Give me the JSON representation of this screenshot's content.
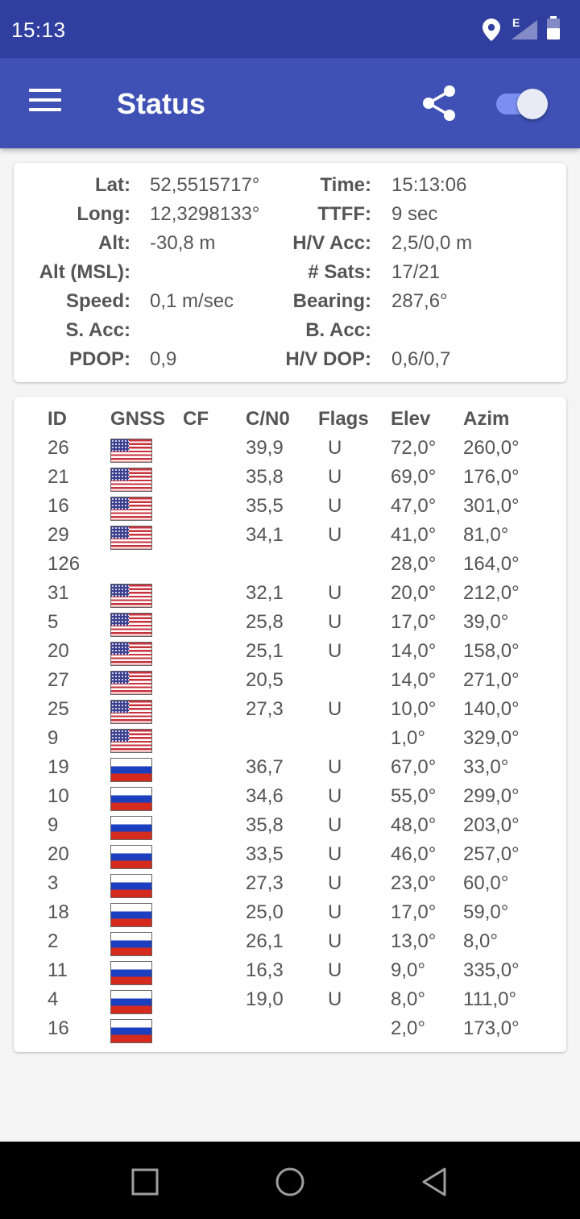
{
  "status_bar": {
    "time": "15:13",
    "network_type": "E",
    "icons": [
      "location-icon",
      "signal-icon",
      "battery-icon"
    ]
  },
  "app_bar": {
    "title": "Status",
    "icons": [
      "menu-icon",
      "share-icon"
    ],
    "toggle_on": true
  },
  "fix": {
    "rows": [
      {
        "l1": "Lat:",
        "v1": "52,5515717°",
        "l2": "Time:",
        "v2": "15:13:06"
      },
      {
        "l1": "Long:",
        "v1": "12,3298133°",
        "l2": "TTFF:",
        "v2": "9 sec"
      },
      {
        "l1": "Alt:",
        "v1": "-30,8 m",
        "l2": "H/V Acc:",
        "v2": "2,5/0,0 m"
      },
      {
        "l1": "Alt (MSL):",
        "v1": "",
        "l2": "# Sats:",
        "v2": "17/21"
      },
      {
        "l1": "Speed:",
        "v1": "0,1 m/sec",
        "l2": "Bearing:",
        "v2": "287,6°"
      },
      {
        "l1": "S. Acc:",
        "v1": "",
        "l2": "B. Acc:",
        "v2": ""
      },
      {
        "l1": "PDOP:",
        "v1": "0,9",
        "l2": "H/V DOP:",
        "v2": "0,6/0,7"
      }
    ]
  },
  "satellites": {
    "headers": {
      "id": "ID",
      "gnss": "GNSS",
      "cf": "CF",
      "cn0": "C/N0",
      "flags": "Flags",
      "elev": "Elev",
      "azim": "Azim"
    },
    "rows": [
      {
        "id": "26",
        "gnss": "us",
        "cf": "",
        "cn0": "39,9",
        "flags": "U",
        "elev": "72,0°",
        "azim": "260,0°"
      },
      {
        "id": "21",
        "gnss": "us",
        "cf": "",
        "cn0": "35,8",
        "flags": "U",
        "elev": "69,0°",
        "azim": "176,0°"
      },
      {
        "id": "16",
        "gnss": "us",
        "cf": "",
        "cn0": "35,5",
        "flags": "U",
        "elev": "47,0°",
        "azim": "301,0°"
      },
      {
        "id": "29",
        "gnss": "us",
        "cf": "",
        "cn0": "34,1",
        "flags": "U",
        "elev": "41,0°",
        "azim": "81,0°"
      },
      {
        "id": "126",
        "gnss": "",
        "cf": "",
        "cn0": "",
        "flags": "",
        "elev": "28,0°",
        "azim": "164,0°"
      },
      {
        "id": "31",
        "gnss": "us",
        "cf": "",
        "cn0": "32,1",
        "flags": "U",
        "elev": "20,0°",
        "azim": "212,0°"
      },
      {
        "id": "5",
        "gnss": "us",
        "cf": "",
        "cn0": "25,8",
        "flags": "U",
        "elev": "17,0°",
        "azim": "39,0°"
      },
      {
        "id": "20",
        "gnss": "us",
        "cf": "",
        "cn0": "25,1",
        "flags": "U",
        "elev": "14,0°",
        "azim": "158,0°"
      },
      {
        "id": "27",
        "gnss": "us",
        "cf": "",
        "cn0": "20,5",
        "flags": "",
        "elev": "14,0°",
        "azim": "271,0°"
      },
      {
        "id": "25",
        "gnss": "us",
        "cf": "",
        "cn0": "27,3",
        "flags": "U",
        "elev": "10,0°",
        "azim": "140,0°"
      },
      {
        "id": "9",
        "gnss": "us",
        "cf": "",
        "cn0": "",
        "flags": "",
        "elev": "1,0°",
        "azim": "329,0°"
      },
      {
        "id": "19",
        "gnss": "ru",
        "cf": "",
        "cn0": "36,7",
        "flags": "U",
        "elev": "67,0°",
        "azim": "33,0°"
      },
      {
        "id": "10",
        "gnss": "ru",
        "cf": "",
        "cn0": "34,6",
        "flags": "U",
        "elev": "55,0°",
        "azim": "299,0°"
      },
      {
        "id": "9",
        "gnss": "ru",
        "cf": "",
        "cn0": "35,8",
        "flags": "U",
        "elev": "48,0°",
        "azim": "203,0°"
      },
      {
        "id": "20",
        "gnss": "ru",
        "cf": "",
        "cn0": "33,5",
        "flags": "U",
        "elev": "46,0°",
        "azim": "257,0°"
      },
      {
        "id": "3",
        "gnss": "ru",
        "cf": "",
        "cn0": "27,3",
        "flags": "U",
        "elev": "23,0°",
        "azim": "60,0°"
      },
      {
        "id": "18",
        "gnss": "ru",
        "cf": "",
        "cn0": "25,0",
        "flags": "U",
        "elev": "17,0°",
        "azim": "59,0°"
      },
      {
        "id": "2",
        "gnss": "ru",
        "cf": "",
        "cn0": "26,1",
        "flags": "U",
        "elev": "13,0°",
        "azim": "8,0°"
      },
      {
        "id": "11",
        "gnss": "ru",
        "cf": "",
        "cn0": "16,3",
        "flags": "U",
        "elev": "9,0°",
        "azim": "335,0°"
      },
      {
        "id": "4",
        "gnss": "ru",
        "cf": "",
        "cn0": "19,0",
        "flags": "U",
        "elev": "8,0°",
        "azim": "111,0°"
      },
      {
        "id": "16",
        "gnss": "ru",
        "cf": "",
        "cn0": "",
        "flags": "",
        "elev": "2,0°",
        "azim": "173,0°"
      }
    ]
  },
  "nav_bar": {
    "buttons": [
      "recents-button",
      "home-button",
      "back-button"
    ]
  },
  "colors": {
    "status_bar": "#303f9f",
    "app_bar": "#3f51b5",
    "background": "#f5f5f5"
  }
}
